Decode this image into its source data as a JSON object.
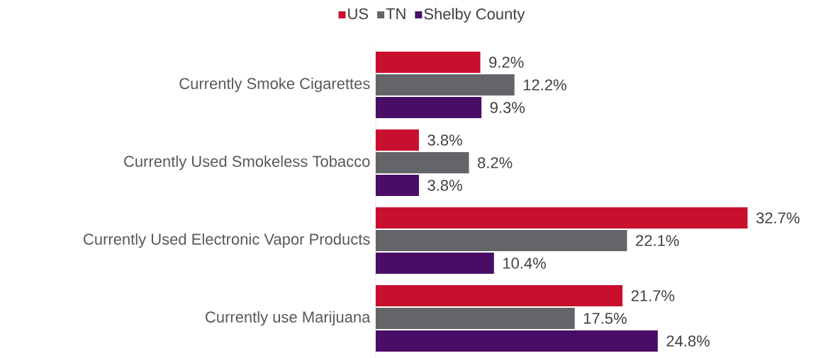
{
  "chart_data": {
    "type": "bar",
    "orientation": "horizontal",
    "relative": false,
    "legend": "top",
    "categories": [
      "Currently Smoke Cigarettes",
      "Currently Used Smokeless Tobacco",
      "Currently Used Electronic Vapor Products",
      "Currently use Marijuana"
    ],
    "series": [
      {
        "name": "US",
        "color": "#c8102e",
        "values": [
          9.2,
          3.8,
          32.7,
          21.7
        ],
        "value_labels": [
          "9.2%",
          "3.8%",
          "32.7%",
          "21.7%"
        ]
      },
      {
        "name": "TN",
        "color": "#646569",
        "values": [
          12.2,
          8.2,
          22.1,
          17.5
        ],
        "value_labels": [
          "12.2%",
          "8.2%",
          "22.1%",
          "17.5%"
        ]
      },
      {
        "name": "Shelby County",
        "color": "#4a0d66",
        "values": [
          9.3,
          3.8,
          10.4,
          24.8
        ],
        "value_labels": [
          "9.3%",
          "3.8%",
          "10.4%",
          "24.8%"
        ]
      }
    ]
  }
}
